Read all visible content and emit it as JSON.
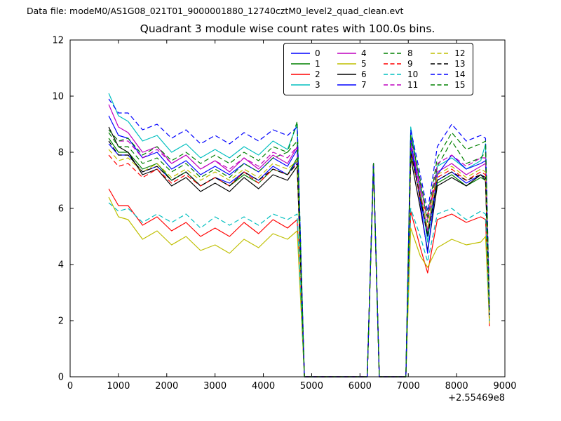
{
  "header": {
    "text": "Data file: modeM0/AS1G08_021T01_9000001880_12740cztM0_level2_quad_clean.evt"
  },
  "chart_data": {
    "type": "line",
    "title": "Quadrant 3 module wise count rates with 100.0s bins.",
    "xlabel": "",
    "ylabel": "",
    "xlim": [
      0,
      9000
    ],
    "ylim": [
      0,
      12
    ],
    "xticks": [
      0,
      1000,
      2000,
      3000,
      4000,
      5000,
      6000,
      7000,
      8000,
      9000
    ],
    "yticks": [
      0,
      2,
      4,
      6,
      8,
      10,
      12
    ],
    "x_offset_label": "+2.55469e8",
    "grid": false,
    "legend_position": "upper center-right, 4 columns, framed",
    "x": [
      800,
      1000,
      1200,
      1500,
      1800,
      2100,
      2400,
      2700,
      3000,
      3300,
      3600,
      3900,
      4200,
      4500,
      4700,
      4850,
      6150,
      6280,
      6400,
      6950,
      7050,
      7250,
      7400,
      7600,
      7900,
      8200,
      8500,
      8600,
      8680
    ],
    "series": [
      {
        "name": "0",
        "color": "#0000ff",
        "style": "solid",
        "values": [
          8.3,
          7.9,
          7.9,
          7.3,
          7.5,
          7.0,
          7.3,
          6.8,
          7.1,
          6.9,
          7.3,
          7.0,
          7.5,
          7.2,
          7.7,
          0,
          0,
          7.6,
          0,
          0,
          8.2,
          6.3,
          5.0,
          7.0,
          7.3,
          6.9,
          7.2,
          7.1,
          2.1
        ]
      },
      {
        "name": "1",
        "color": "#008000",
        "style": "solid",
        "values": [
          8.5,
          8.0,
          8.0,
          7.4,
          7.6,
          7.0,
          7.3,
          6.8,
          7.1,
          6.8,
          7.2,
          6.9,
          7.4,
          7.2,
          7.8,
          0,
          0,
          7.5,
          0,
          0,
          8.0,
          6.4,
          5.1,
          6.9,
          7.2,
          6.8,
          7.1,
          7.0,
          2.0
        ]
      },
      {
        "name": "2",
        "color": "#ff0000",
        "style": "solid",
        "values": [
          6.7,
          6.1,
          6.1,
          5.4,
          5.7,
          5.2,
          5.5,
          5.0,
          5.3,
          5.0,
          5.5,
          5.1,
          5.6,
          5.3,
          5.6,
          0,
          0,
          7.5,
          0,
          0,
          5.9,
          4.6,
          3.7,
          5.6,
          5.8,
          5.5,
          5.7,
          5.6,
          1.8
        ]
      },
      {
        "name": "3",
        "color": "#00bfbf",
        "style": "solid",
        "values": [
          10.1,
          9.3,
          9.1,
          8.4,
          8.6,
          8.0,
          8.3,
          7.8,
          8.1,
          7.8,
          8.2,
          7.9,
          8.4,
          8.1,
          9.0,
          0,
          0,
          7.6,
          0,
          0,
          8.9,
          6.7,
          4.8,
          7.5,
          7.8,
          7.4,
          7.7,
          8.3,
          2.4
        ]
      },
      {
        "name": "4",
        "color": "#bf00bf",
        "style": "solid",
        "values": [
          9.7,
          8.9,
          8.7,
          8.0,
          8.2,
          7.6,
          7.9,
          7.4,
          7.7,
          7.3,
          7.8,
          7.4,
          7.9,
          7.6,
          8.2,
          0,
          0,
          7.6,
          0,
          0,
          8.4,
          6.6,
          5.2,
          7.3,
          7.6,
          7.2,
          7.5,
          7.6,
          2.3
        ]
      },
      {
        "name": "5",
        "color": "#bfbf00",
        "style": "solid",
        "values": [
          6.4,
          5.7,
          5.6,
          4.9,
          5.2,
          4.7,
          5.0,
          4.5,
          4.7,
          4.4,
          4.9,
          4.6,
          5.1,
          4.9,
          5.2,
          0,
          0,
          7.4,
          0,
          0,
          5.3,
          4.3,
          3.9,
          4.6,
          4.9,
          4.7,
          4.8,
          5.0,
          1.9
        ]
      },
      {
        "name": "6",
        "color": "#000000",
        "style": "solid",
        "values": [
          8.9,
          8.2,
          8.0,
          7.2,
          7.4,
          6.8,
          7.1,
          6.6,
          6.9,
          6.6,
          7.1,
          6.7,
          7.2,
          7.0,
          7.5,
          0,
          0,
          7.6,
          0,
          0,
          7.8,
          6.0,
          4.5,
          6.8,
          7.1,
          6.8,
          7.2,
          7.0,
          2.1
        ]
      },
      {
        "name": "7",
        "color": "#0000ff",
        "style": "solid",
        "values": [
          9.3,
          8.6,
          8.5,
          7.8,
          8.0,
          7.4,
          7.7,
          7.2,
          7.5,
          7.2,
          7.6,
          7.3,
          7.8,
          7.5,
          8.1,
          0,
          0,
          7.6,
          0,
          0,
          8.5,
          6.2,
          4.4,
          7.2,
          7.9,
          7.4,
          7.6,
          7.7,
          2.2
        ]
      },
      {
        "name": "8",
        "color": "#008000",
        "style": "dashed",
        "values": [
          8.7,
          8.2,
          8.2,
          7.6,
          7.8,
          7.3,
          7.6,
          7.1,
          7.4,
          7.1,
          7.6,
          7.3,
          7.8,
          8.0,
          9.1,
          0,
          0,
          7.6,
          0,
          0,
          8.6,
          6.9,
          5.5,
          7.5,
          8.4,
          7.6,
          7.8,
          8.0,
          2.3
        ]
      },
      {
        "name": "9",
        "color": "#ff0000",
        "style": "dashed",
        "values": [
          7.9,
          7.5,
          7.6,
          7.1,
          7.4,
          6.9,
          7.2,
          6.8,
          7.1,
          6.8,
          7.3,
          6.9,
          7.4,
          7.2,
          7.6,
          0,
          0,
          7.5,
          0,
          0,
          8.1,
          6.3,
          5.8,
          7.1,
          7.4,
          7.0,
          7.3,
          7.2,
          2.1
        ]
      },
      {
        "name": "10",
        "color": "#00bfbf",
        "style": "dashed",
        "values": [
          6.2,
          5.9,
          6.0,
          5.5,
          5.8,
          5.5,
          5.8,
          5.3,
          5.7,
          5.4,
          5.7,
          5.4,
          5.8,
          5.6,
          5.8,
          0,
          0,
          7.5,
          0,
          0,
          6.0,
          5.0,
          4.1,
          5.8,
          6.0,
          5.6,
          5.9,
          5.8,
          2.0
        ]
      },
      {
        "name": "11",
        "color": "#bf00bf",
        "style": "dashed",
        "values": [
          8.8,
          8.4,
          8.4,
          7.8,
          8.1,
          7.6,
          7.9,
          7.4,
          7.7,
          7.4,
          7.8,
          7.5,
          8.0,
          7.8,
          8.2,
          0,
          0,
          7.6,
          0,
          0,
          8.4,
          6.8,
          5.6,
          7.6,
          7.9,
          7.5,
          7.8,
          7.8,
          2.3
        ]
      },
      {
        "name": "12",
        "color": "#bfbf00",
        "style": "dashed",
        "values": [
          8.1,
          7.7,
          7.8,
          7.3,
          7.6,
          7.1,
          7.4,
          7.0,
          7.3,
          7.0,
          7.4,
          7.1,
          7.6,
          7.4,
          7.7,
          0,
          0,
          7.5,
          0,
          0,
          7.9,
          6.5,
          5.3,
          7.2,
          7.5,
          7.1,
          7.4,
          7.3,
          2.1
        ]
      },
      {
        "name": "13",
        "color": "#000000",
        "style": "dashed",
        "values": [
          8.4,
          7.9,
          7.9,
          7.3,
          7.5,
          7.0,
          7.3,
          6.8,
          7.1,
          6.8,
          7.3,
          7.0,
          7.4,
          7.2,
          7.6,
          0,
          0,
          7.6,
          0,
          0,
          8.0,
          6.4,
          5.0,
          7.0,
          7.3,
          7.0,
          7.2,
          7.1,
          2.2
        ]
      },
      {
        "name": "14",
        "color": "#0000ff",
        "style": "dashed",
        "values": [
          9.9,
          9.4,
          9.4,
          8.8,
          9.0,
          8.5,
          8.8,
          8.3,
          8.6,
          8.3,
          8.7,
          8.4,
          8.8,
          8.6,
          8.9,
          0,
          0,
          7.6,
          0,
          0,
          8.8,
          7.2,
          5.9,
          8.2,
          9.0,
          8.4,
          8.6,
          8.5,
          2.5
        ]
      },
      {
        "name": "15",
        "color": "#008000",
        "style": "dashed",
        "values": [
          8.8,
          8.4,
          8.5,
          7.9,
          8.2,
          7.7,
          8.0,
          7.6,
          7.9,
          7.6,
          8.0,
          7.7,
          8.2,
          8.0,
          8.4,
          0,
          0,
          7.6,
          0,
          0,
          8.6,
          7.0,
          5.7,
          7.8,
          8.7,
          8.1,
          8.3,
          8.4,
          2.4
        ]
      }
    ]
  }
}
